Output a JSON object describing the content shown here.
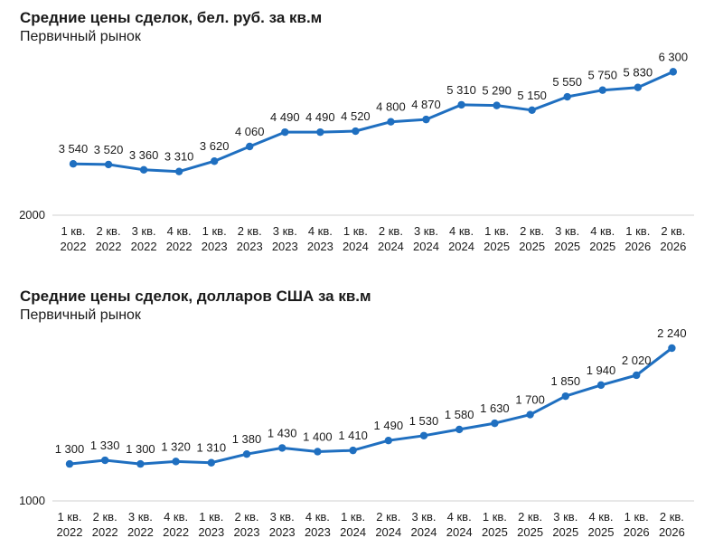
{
  "chart_data": [
    {
      "type": "line",
      "title": "Средние цены сделок, бел. руб. за кв.м",
      "subtitle": "Первичный рынок",
      "categories": [
        [
          "1 кв.",
          "2022"
        ],
        [
          "2 кв.",
          "2022"
        ],
        [
          "3 кв.",
          "2022"
        ],
        [
          "4 кв.",
          "2022"
        ],
        [
          "1 кв.",
          "2023"
        ],
        [
          "2 кв.",
          "2023"
        ],
        [
          "3 кв.",
          "2023"
        ],
        [
          "4 кв.",
          "2023"
        ],
        [
          "1 кв.",
          "2024"
        ],
        [
          "2 кв.",
          "2024"
        ],
        [
          "3 кв.",
          "2024"
        ],
        [
          "4 кв.",
          "2024"
        ],
        [
          "1 кв.",
          "2025"
        ],
        [
          "2 кв.",
          "2025"
        ],
        [
          "3 кв.",
          "2025"
        ],
        [
          "4 кв.",
          "2025"
        ],
        [
          "1 кв.",
          "2026"
        ],
        [
          "2 кв.",
          "2026"
        ]
      ],
      "series": [
        {
          "values": [
            3540,
            3520,
            3360,
            3310,
            3620,
            4060,
            4490,
            4490,
            4520,
            4800,
            4870,
            5310,
            5290,
            5150,
            5550,
            5750,
            5830,
            6300
          ],
          "labels": [
            "3 540",
            "3 520",
            "3 360",
            "3 310",
            "3 620",
            "4 060",
            "4 490",
            "4 490",
            "4 520",
            "4 800",
            "4 870",
            "5 310",
            "5 290",
            "5 150",
            "5 550",
            "5 750",
            "5 830",
            "6 300"
          ],
          "color": "#1f6fc0"
        }
      ],
      "ylim": [
        2000,
        6500
      ],
      "y_ticks": [
        {
          "value": 2000,
          "label": "2000"
        }
      ],
      "grid": false,
      "legend": "none"
    },
    {
      "type": "line",
      "title": "Средние цены сделок, долларов США за кв.м",
      "subtitle": "Первичный рынок",
      "categories": [
        [
          "1 кв.",
          "2022"
        ],
        [
          "2 кв.",
          "2022"
        ],
        [
          "3 кв.",
          "2022"
        ],
        [
          "4 кв.",
          "2022"
        ],
        [
          "1 кв.",
          "2023"
        ],
        [
          "2 кв.",
          "2023"
        ],
        [
          "3 кв.",
          "2023"
        ],
        [
          "4 кв.",
          "2023"
        ],
        [
          "1 кв.",
          "2024"
        ],
        [
          "2 кв.",
          "2024"
        ],
        [
          "3 кв.",
          "2024"
        ],
        [
          "4 кв.",
          "2024"
        ],
        [
          "1 кв.",
          "2025"
        ],
        [
          "2 кв.",
          "2025"
        ],
        [
          "3 кв.",
          "2025"
        ],
        [
          "4 кв.",
          "2025"
        ],
        [
          "1 кв.",
          "2026"
        ],
        [
          "2 кв.",
          "2026"
        ]
      ],
      "series": [
        {
          "values": [
            1300,
            1330,
            1300,
            1320,
            1310,
            1380,
            1430,
            1400,
            1410,
            1490,
            1530,
            1580,
            1630,
            1700,
            1850,
            1940,
            2020,
            2240
          ],
          "labels": [
            "1 300",
            "1 330",
            "1 300",
            "1 320",
            "1 310",
            "1 380",
            "1 430",
            "1 400",
            "1 410",
            "1 490",
            "1 530",
            "1 580",
            "1 630",
            "1 700",
            "1 850",
            "1 940",
            "2 020",
            "2 240"
          ],
          "color": "#1f6fc0"
        }
      ],
      "ylim": [
        1000,
        2350
      ],
      "y_ticks": [
        {
          "value": 1000,
          "label": "1000"
        }
      ],
      "grid": false,
      "legend": "none"
    }
  ]
}
